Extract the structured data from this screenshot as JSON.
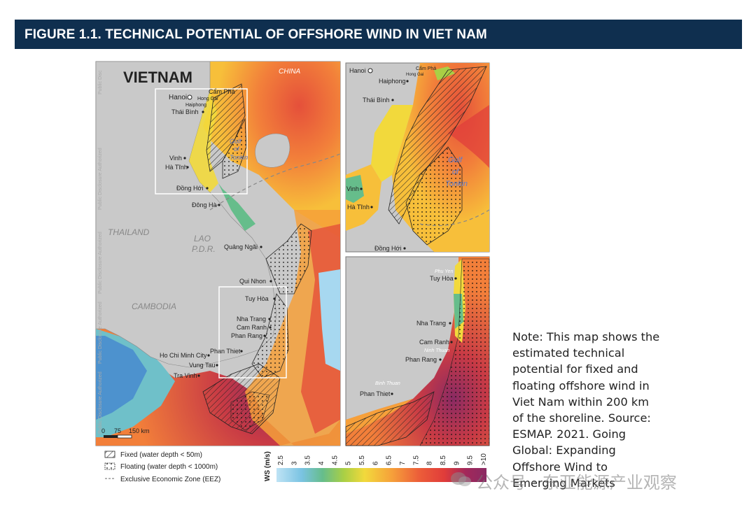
{
  "figure": {
    "title": "FIGURE 1.1. TECHNICAL POTENTIAL OF OFFSHORE WIND IN VIET NAM"
  },
  "main_map": {
    "country_label": "VIETNAM",
    "region_labels": [
      "CHINA",
      "THAILAND",
      "LAO",
      "P.D.R.",
      "CAMBODIA"
    ],
    "sea_labels": [
      "Gulf",
      "of",
      "Tonkin"
    ],
    "cities": [
      "Hanoi",
      "Cẩm Phả",
      "Hong Gai",
      "Haiphong",
      "Thái Bình",
      "Vinh",
      "Hà Tĩnh",
      "Đồng Hới",
      "Đông Hà",
      "Quảng Ngãi",
      "Qui Nhon",
      "Tuy Hòa",
      "Nha Trang",
      "Cam Ranh",
      "Phan Rang",
      "Phan Thiet",
      "Ho Chi Minh City",
      "Vung Tau",
      "Tra Vinh"
    ],
    "scale": {
      "labels": [
        "0",
        "75",
        "150 km"
      ]
    },
    "side_watermark": [
      "Public Disclosure Authorized",
      "Public Disclosure Authorized",
      "Public Disclosure Authorized",
      "Public Disclosure Authorized",
      "Public Disc"
    ]
  },
  "inset_north": {
    "cities": [
      "Hanoi",
      "Cẩm Phả",
      "Hong Gai",
      "Haiphong",
      "Thái Bình",
      "Vinh",
      "Hà Tĩnh",
      "Đồng Hới"
    ],
    "sea_labels": [
      "Gulf",
      "of",
      "Tonkin"
    ]
  },
  "inset_south": {
    "cities": [
      "Tuy Hòa",
      "Nha Trang",
      "Cam Ranh",
      "Phan Rang",
      "Phan Thiet"
    ],
    "region_labels": [
      "Phu Yen",
      "Ninh Thuan",
      "Binh Thuan"
    ]
  },
  "legend": {
    "items": [
      {
        "label": "Fixed (water depth < 50m)",
        "symbol": "hatch"
      },
      {
        "label": "Floating (water depth < 1000m)",
        "symbol": "dots"
      },
      {
        "label": "Exclusive Economic Zone (EEZ)",
        "symbol": "dash"
      }
    ],
    "colorbar_title": "WS (m/s)",
    "colorbar_ticks": [
      "2.5",
      "3",
      "3.5",
      "4",
      "4.5",
      "5",
      "5.5",
      "6",
      "6.5",
      "7",
      "7.5",
      "8",
      "8.5",
      "9",
      "9.5",
      ">10"
    ],
    "colorbar_colors": [
      "#bfe3f5",
      "#a7d8f0",
      "#8fcde9",
      "#7ac3e2",
      "#6fc0c9",
      "#66bd8b",
      "#7cc35a",
      "#a9cf45",
      "#d5dc3e",
      "#f2d93c",
      "#f7bf3a",
      "#f6a03a",
      "#f27f3a",
      "#ec5d39",
      "#e03c3a",
      "#a3285a",
      "#8a2a63"
    ]
  },
  "note": {
    "text": "Note: This map shows the estimated technical potential for fixed and floating offshore wind in Viet Nam within 200 km of the shoreline. Source: ESMAP. 2021. Going Global: Expanding Offshore Wind to Emerging Markets"
  },
  "watermark": {
    "text": "公众号 · 东亚能源产业观察"
  }
}
